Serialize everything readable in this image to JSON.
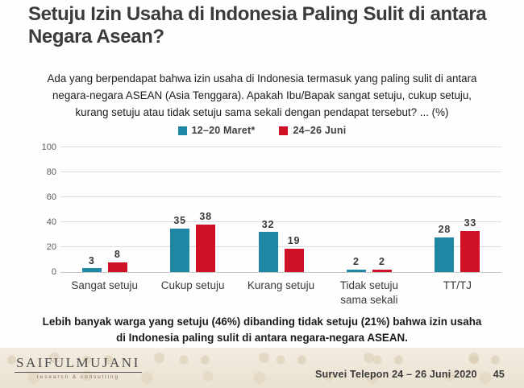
{
  "slide": {
    "title": "Setuju Izin Usaha di Indonesia Paling Sulit di antara Negara Asean?",
    "question": "Ada yang berpendapat bahwa izin usaha di Indonesia termasuk yang paling sulit di antara negara-negara ASEAN (Asia Tenggara). Apakah Ibu/Bapak sangat setuju, cukup setuju, kurang setuju atau tidak setuju sama sekali dengan pendapat tersebut? ... (%)",
    "summary": "Lebih banyak warga yang setuju (46%) dibanding tidak setuju (21%) bahwa izin usaha di Indonesia paling sulit di antara negara-negara ASEAN.",
    "footer": {
      "logo_text": "SAIFULMUJANI",
      "logo_subtext": "research & consulting",
      "survey_label": "Survei Telepon 24 – 26 Juni 2020",
      "page_number": "45"
    }
  },
  "chart_data": {
    "type": "bar",
    "title": "",
    "xlabel": "",
    "ylabel": "",
    "categories": [
      "Sangat setuju",
      "Cukup setuju",
      "Kurang setuju",
      "Tidak setuju sama sekali",
      "TT/TJ"
    ],
    "series": [
      {
        "name": "12–20 Maret*",
        "color": "#1F87A3",
        "values": [
          3,
          35,
          32,
          2,
          28
        ]
      },
      {
        "name": "24–26 Juni",
        "color": "#CE1126",
        "values": [
          8,
          38,
          19,
          2,
          33
        ]
      }
    ],
    "ylim": [
      0,
      100
    ],
    "yticks": [
      0,
      20,
      40,
      60,
      80,
      100
    ],
    "grid": true,
    "legend_position": "top"
  }
}
